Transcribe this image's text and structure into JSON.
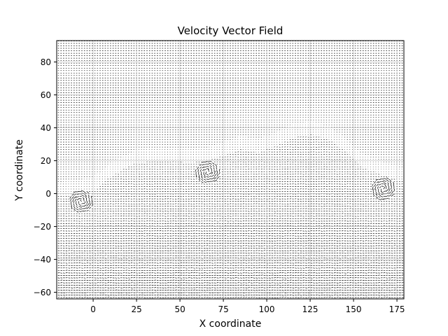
{
  "chart_data": {
    "type": "scatter",
    "subtype": "quiver",
    "title": "Velocity Vector Field",
    "xlabel": "X coordinate",
    "ylabel": "Y coordinate",
    "xlim": [
      -21,
      179
    ],
    "ylim": [
      -64,
      93
    ],
    "xticks": [
      0,
      25,
      50,
      75,
      100,
      125,
      150,
      175
    ],
    "xtick_labels": [
      "0",
      "25",
      "50",
      "75",
      "100",
      "125",
      "150",
      "175"
    ],
    "yticks": [
      -60,
      -40,
      -20,
      0,
      20,
      40,
      60,
      80
    ],
    "ytick_labels": [
      "−60",
      "−40",
      "−20",
      "0",
      "20",
      "40",
      "60",
      "80"
    ],
    "grid": true,
    "grid_spacing": {
      "dx": 1.5,
      "dy": 1.5
    },
    "arrow_color": "#000000",
    "background": "#ffffff",
    "interface_profile": [
      [
        -21,
        -1
      ],
      [
        -10,
        0
      ],
      [
        0,
        2
      ],
      [
        12,
        12
      ],
      [
        25,
        19
      ],
      [
        40,
        20
      ],
      [
        55,
        19
      ],
      [
        65,
        20
      ],
      [
        75,
        23
      ],
      [
        85,
        27
      ],
      [
        95,
        25
      ],
      [
        105,
        29
      ],
      [
        115,
        34
      ],
      [
        125,
        36
      ],
      [
        135,
        33
      ],
      [
        145,
        26
      ],
      [
        155,
        16
      ],
      [
        165,
        12
      ],
      [
        179,
        7
      ]
    ],
    "vortex_centers": [
      [
        66,
        13
      ],
      [
        -7,
        -5
      ],
      [
        167,
        3
      ]
    ]
  }
}
